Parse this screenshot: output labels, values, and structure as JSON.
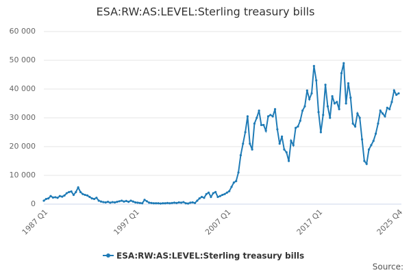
{
  "chart_data": {
    "type": "line",
    "title": "ESA:RW:AS:LEVEL:Sterling treasury bills",
    "source": "Source:",
    "categories": [
      "1987 Q1",
      null,
      null,
      null,
      null,
      null,
      null,
      null,
      null,
      null,
      null,
      null,
      null,
      null,
      null,
      null,
      null,
      null,
      null,
      null,
      null,
      null,
      null,
      null,
      null,
      null,
      null,
      null,
      null,
      null,
      null,
      null,
      null,
      null,
      null,
      null,
      null,
      null,
      null,
      null,
      "1997 Q1",
      null,
      null,
      null,
      null,
      null,
      null,
      null,
      null,
      null,
      null,
      null,
      null,
      null,
      null,
      null,
      null,
      null,
      null,
      null,
      null,
      null,
      null,
      null,
      null,
      null,
      null,
      null,
      null,
      null,
      null,
      null,
      null,
      null,
      null,
      null,
      null,
      null,
      null,
      null,
      "2007 Q1",
      null,
      null,
      null,
      null,
      null,
      null,
      null,
      null,
      null,
      null,
      null,
      null,
      null,
      null,
      null,
      null,
      null,
      null,
      null,
      null,
      null,
      null,
      null,
      null,
      null,
      null,
      null,
      null,
      null,
      null,
      null,
      null,
      null,
      null,
      null,
      null,
      null,
      null,
      null,
      "2017 Q1",
      null,
      null,
      null,
      null,
      null,
      null,
      null,
      null,
      null,
      null,
      null,
      null,
      null,
      null,
      null,
      null,
      null,
      null,
      null,
      null,
      null,
      null,
      null,
      null,
      null,
      null,
      null,
      null,
      null,
      null,
      null,
      null,
      null,
      null,
      "2025 Q4"
    ],
    "series": [
      {
        "name": "ESA:RW:AS:LEVEL:Sterling treasury bills",
        "color": "#1f7bb6",
        "values": [
          1200,
          1800,
          2000,
          2800,
          2300,
          2400,
          2200,
          2800,
          2600,
          3000,
          3800,
          4200,
          4400,
          3200,
          4200,
          5800,
          4200,
          3500,
          3200,
          3000,
          2500,
          2000,
          1800,
          2200,
          1200,
          900,
          700,
          600,
          800,
          500,
          700,
          600,
          800,
          1000,
          1200,
          900,
          1100,
          800,
          1200,
          900,
          600,
          500,
          400,
          300,
          1500,
          1000,
          500,
          400,
          300,
          300,
          300,
          200,
          300,
          300,
          400,
          300,
          400,
          500,
          400,
          600,
          500,
          700,
          300,
          200,
          500,
          600,
          400,
          1200,
          2000,
          2500,
          2200,
          3500,
          4000,
          2500,
          3800,
          4200,
          2500,
          2800,
          3200,
          3500,
          4000,
          4500,
          6000,
          7500,
          8000,
          11000,
          17000,
          21000,
          25000,
          30500,
          21000,
          19000,
          28000,
          30000,
          32500,
          27500,
          27500,
          25500,
          30500,
          31000,
          30500,
          33000,
          26000,
          21000,
          23500,
          19000,
          18000,
          15000,
          22000,
          20500,
          26500,
          27000,
          29000,
          32500,
          34000,
          39500,
          36500,
          38500,
          48000,
          43000,
          32000,
          25000,
          31000,
          41500,
          34000,
          30000,
          37500,
          35000,
          35500,
          33000,
          45500,
          49000,
          35000,
          42000,
          37000,
          28000,
          27000,
          31500,
          30000,
          22500,
          15000,
          14000,
          19000,
          20500,
          22000,
          24500,
          28000,
          32500,
          31500,
          30500,
          33500,
          33000,
          35500,
          39500,
          38000,
          38500
        ]
      }
    ],
    "ylim": [
      0,
      60000
    ],
    "yticks": [
      0,
      {
        "value": 10000,
        "label": "10 000"
      },
      {
        "value": 20000,
        "label": "20 000"
      },
      {
        "value": 30000,
        "label": "30 000"
      },
      {
        "value": 40000,
        "label": "40 000"
      },
      {
        "value": 50000,
        "label": "50 000"
      },
      {
        "value": 60000,
        "label": "60 000"
      }
    ],
    "grid": true
  }
}
